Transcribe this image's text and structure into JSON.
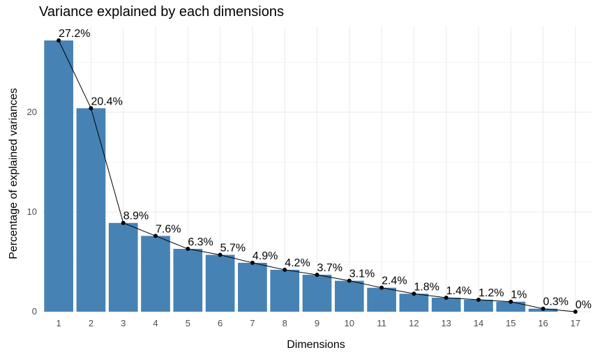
{
  "chart_data": {
    "type": "bar",
    "title": "Variance explained by each dimensions",
    "xlabel": "Dimensions",
    "ylabel": "Percentage of explained variances",
    "categories": [
      "1",
      "2",
      "3",
      "4",
      "5",
      "6",
      "7",
      "8",
      "9",
      "10",
      "11",
      "12",
      "13",
      "14",
      "15",
      "16",
      "17"
    ],
    "values": [
      27.2,
      20.4,
      8.9,
      7.6,
      6.3,
      5.7,
      4.9,
      4.2,
      3.7,
      3.1,
      2.4,
      1.8,
      1.4,
      1.2,
      1.0,
      0.3,
      0.0
    ],
    "labels": [
      "27.2%",
      "20.4%",
      "8.9%",
      "7.6%",
      "6.3%",
      "5.7%",
      "4.9%",
      "4.2%",
      "3.7%",
      "3.1%",
      "2.4%",
      "1.8%",
      "1.4%",
      "1.2%",
      "1%",
      "0.3%",
      "0%"
    ],
    "yticks": [
      0,
      10,
      20
    ],
    "ylim": [
      0,
      28.6
    ],
    "grid": true,
    "legend": "none",
    "overlay": "line with points",
    "colors": {
      "bar": "#4682B4",
      "line": "#000000",
      "grid": "#ebebeb"
    }
  }
}
